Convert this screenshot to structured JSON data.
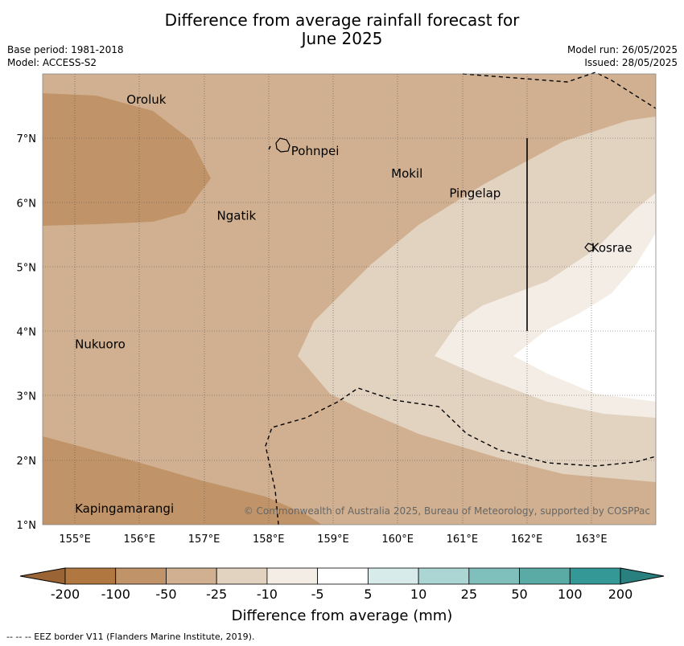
{
  "title_line1": "Difference from average rainfall forecast for",
  "title_line2": "June 2025",
  "meta": {
    "base_period": "Base period: 1981-2018",
    "model": "Model: ACCESS-S2",
    "model_run": "Model run: 26/05/2025",
    "issued": "Issued: 28/05/2025"
  },
  "map": {
    "lon_range": [
      154.5,
      164.0
    ],
    "lat_range": [
      1.0,
      8.0
    ],
    "lon_ticks": [
      "155°E",
      "156°E",
      "157°E",
      "158°E",
      "159°E",
      "160°E",
      "161°E",
      "162°E",
      "163°E"
    ],
    "lat_ticks": [
      "1°N",
      "2°N",
      "3°N",
      "4°N",
      "5°N",
      "6°N",
      "7°N"
    ],
    "places": [
      {
        "name": "Oroluk",
        "lon": 155.75,
        "lat": 7.6
      },
      {
        "name": "Pohnpei",
        "lon": 158.3,
        "lat": 6.8
      },
      {
        "name": "Mokil",
        "lon": 159.85,
        "lat": 6.45
      },
      {
        "name": "Pingelap",
        "lon": 160.75,
        "lat": 6.15
      },
      {
        "name": "Ngatik",
        "lon": 157.15,
        "lat": 5.8
      },
      {
        "name": "Kosrae",
        "lon": 162.95,
        "lat": 5.3
      },
      {
        "name": "Nukuoro",
        "lon": 154.95,
        "lat": 3.8
      },
      {
        "name": "Kapingamarangi",
        "lon": 154.95,
        "lat": 1.25
      }
    ],
    "copyright": "© Commonwealth of Australia 2025, Bureau of Meteorology, supported by COSPPac"
  },
  "colorbar": {
    "labels": [
      "-200",
      "-100",
      "-50",
      "-25",
      "-10",
      "-5",
      "5",
      "10",
      "25",
      "50",
      "100",
      "200"
    ],
    "colors": [
      "#b07840",
      "#c09468",
      "#d0b090",
      "#e2d2c0",
      "#f3ede5",
      "#ffffff",
      "#d6ebea",
      "#acd6d4",
      "#80c0bc",
      "#5aaaa6",
      "#349896"
    ],
    "under_color": "#9a6434",
    "over_color": "#2a807e",
    "title": "Difference from average (mm)"
  },
  "footer": "--  --  -- EEZ border V11 (Flanders Marine Institute, 2019)."
}
